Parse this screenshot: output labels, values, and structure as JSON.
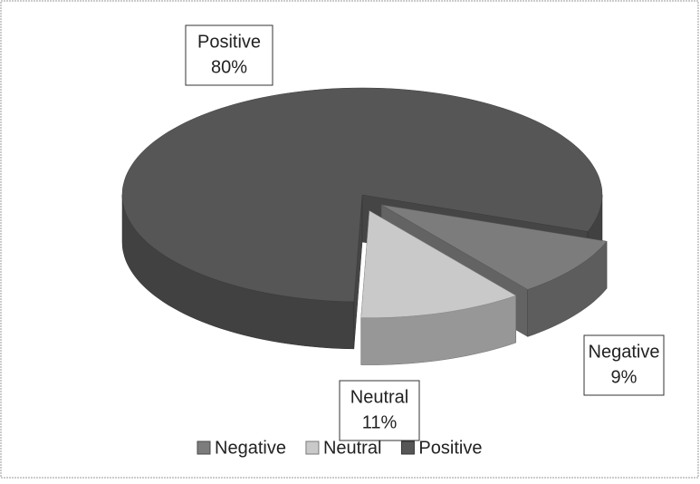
{
  "chart_data": {
    "type": "pie3d",
    "categories": [
      "Negative",
      "Neutral",
      "Positive"
    ],
    "values": [
      9,
      11,
      80
    ],
    "value_labels": [
      "9%",
      "11%",
      "80%"
    ],
    "colors": [
      "#7c7c7c",
      "#c9c9c9",
      "#565656"
    ],
    "exploded": [
      true,
      true,
      false
    ],
    "legend": "bottom"
  }
}
